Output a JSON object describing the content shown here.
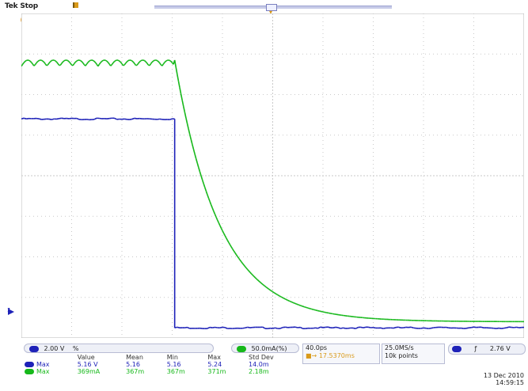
{
  "header": {
    "status_text": "Tek Stop"
  },
  "markers": {
    "reference_marker_label": "0",
    "channel_ground_marker_label": "1"
  },
  "channels": {
    "ch1_color": "#1e22b8",
    "ch2_color": "#16b81a",
    "ch1_label": "2.00 V",
    "ch1_bw_note": "%",
    "ch2_label": "50.0mA(%)"
  },
  "acquisition": {
    "rate": "40.0ps",
    "trigger_pos": "17.5370ms"
  },
  "horizontal": {
    "sample_rate": "25.0MS/s",
    "record_length": "10k points"
  },
  "trigger": {
    "slope_icon": "rising-edge",
    "level": "2.76 V"
  },
  "datetime": {
    "date": "13 Dec 2010",
    "time": "14:59:15"
  },
  "measurements": {
    "headers": [
      "",
      "Value",
      "Mean",
      "Min",
      "Max",
      "Std Dev"
    ],
    "rows": [
      {
        "label": "Max",
        "color": "#1e22b8",
        "value": "5.16 V",
        "mean": "5.16",
        "min": "5.16",
        "max": "5.24",
        "std": "14.0m"
      },
      {
        "label": "Max",
        "color": "#16b81a",
        "value": "369mA",
        "mean": "367m",
        "min": "367m",
        "max": "371m",
        "std": "2.18m"
      }
    ]
  },
  "waveforms": {
    "time_divisions": 10,
    "volt_divisions": 8,
    "edge_time_div": 3.05,
    "ch1": {
      "name": "Ch1",
      "high_div": 5.4,
      "low_div": 0.25
    },
    "ch2": {
      "name": "Ch2",
      "ripple_center_div": 6.7,
      "ripple_amplitude_div": 0.15,
      "ripple_cycles_before_edge": 12,
      "decay_start_div": 6.85,
      "decay_end_div": 0.4,
      "decay_time_constant_div": 0.9
    }
  }
}
